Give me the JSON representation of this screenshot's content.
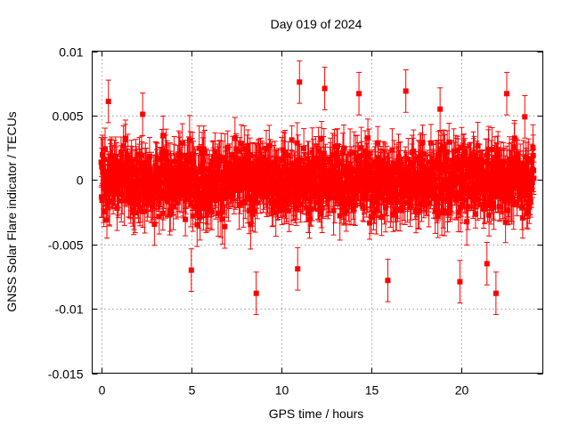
{
  "chart_data": {
    "type": "scatter",
    "title": "Day 019 of 2024",
    "xlabel": "GPS time / hours",
    "ylabel": "GNSS Solar Flare indicator / TECUs",
    "xlim": [
      -0.5,
      24.5
    ],
    "ylim": [
      -0.015,
      0.01
    ],
    "x_ticks": [
      {
        "value": 0,
        "label": "0"
      },
      {
        "value": 5,
        "label": "5"
      },
      {
        "value": 10,
        "label": "10"
      },
      {
        "value": 15,
        "label": "15"
      },
      {
        "value": 20,
        "label": "20"
      }
    ],
    "y_ticks": [
      {
        "value": 0.01,
        "label": "0.01"
      },
      {
        "value": 0.005,
        "label": "0.005"
      },
      {
        "value": 0,
        "label": "0"
      },
      {
        "value": -0.005,
        "label": "-0.005"
      },
      {
        "value": -0.01,
        "label": "-0.01"
      },
      {
        "value": -0.015,
        "label": "-0.015"
      }
    ],
    "grid": true,
    "legend": "none",
    "series": [
      {
        "color": "#ff0000",
        "marker": "square",
        "error_bars": true,
        "x_start": 0,
        "x_end": 24,
        "point_count": 1440,
        "typical_y_range": [
          -0.003,
          0.003
        ],
        "typical_error": 0.0015,
        "highlighted_points": [
          {
            "x": 0.4,
            "y": 0.0061
          },
          {
            "x": 8.6,
            "y": -0.0088
          },
          {
            "x": 11.0,
            "y": 0.0076
          },
          {
            "x": 12.4,
            "y": 0.0071
          },
          {
            "x": 14.3,
            "y": 0.0067
          },
          {
            "x": 15.9,
            "y": -0.0078
          },
          {
            "x": 19.9,
            "y": -0.0079
          },
          {
            "x": 21.9,
            "y": -0.0088
          },
          {
            "x": 22.5,
            "y": 0.0067
          },
          {
            "x": 23.5,
            "y": 0.0049
          },
          {
            "x": 5.0,
            "y": -0.007
          },
          {
            "x": 10.9,
            "y": -0.0069
          },
          {
            "x": 16.9,
            "y": 0.0069
          },
          {
            "x": 2.3,
            "y": 0.0051
          },
          {
            "x": 18.8,
            "y": 0.0055
          },
          {
            "x": 21.4,
            "y": -0.0065
          }
        ]
      }
    ]
  }
}
